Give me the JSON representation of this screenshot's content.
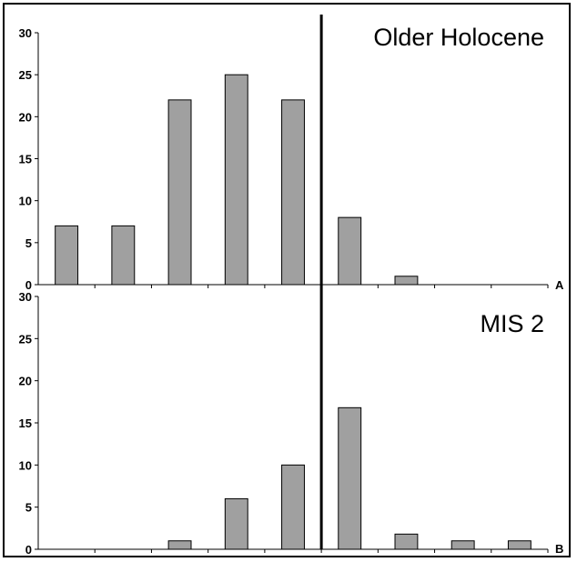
{
  "chart_data": [
    {
      "type": "bar",
      "title": "Older Holocene",
      "panel_label": "A",
      "ylim": [
        0,
        30
      ],
      "yticks": [
        0,
        5,
        10,
        15,
        20,
        25,
        30
      ],
      "values": [
        7,
        7,
        22,
        25,
        22,
        8,
        1,
        0,
        0
      ],
      "bar_color": "#a0a0a0",
      "grid": false
    },
    {
      "type": "bar",
      "title": "MIS 2",
      "panel_label": "B",
      "ylim": [
        0,
        30
      ],
      "yticks": [
        0,
        5,
        10,
        15,
        20,
        25,
        30
      ],
      "values": [
        0,
        0,
        1,
        6,
        10,
        16.8,
        1.8,
        1,
        1
      ],
      "bar_color": "#a0a0a0",
      "grid": false
    }
  ],
  "divider_after_bar": 5
}
